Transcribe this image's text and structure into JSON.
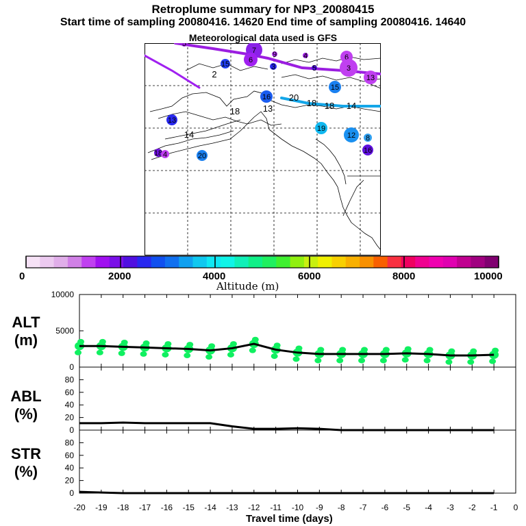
{
  "header": {
    "title": "Retroplume summary for NP3_20080415",
    "subtitle": "Start time of sampling 20080416. 14620     End time of sampling 20080416. 14640",
    "met_note": "Meteorological data used is GFS"
  },
  "map": {
    "point_labels": [
      "5",
      "7",
      "9",
      "4",
      "6",
      "15",
      "6",
      "3",
      "5",
      "3",
      "13",
      "15",
      "16",
      "20",
      "18",
      "18",
      "14",
      "13",
      "19",
      "12",
      "8",
      "16",
      "13",
      "14",
      "18",
      "20",
      "2",
      "18",
      "4"
    ],
    "colors": {
      "trajectory_purple": "#9b1ee0",
      "trajectory_cyan": "#14a6e8",
      "trajectory_violet": "#a020f0"
    }
  },
  "colorbar": {
    "tick_labels": [
      "0",
      "2000",
      "4000",
      "6000",
      "8000",
      "10000"
    ],
    "label": "Altitude (m)",
    "colors": [
      "#f6e2f6",
      "#eccaf0",
      "#e0aee9",
      "#d080e6",
      "#c040f0",
      "#a010f0",
      "#7a10e8",
      "#5010e0",
      "#2828f0",
      "#1050f0",
      "#1070f0",
      "#10a0f0",
      "#10c8f0",
      "#10e8f4",
      "#10f4e8",
      "#10f0b8",
      "#10f088",
      "#20f060",
      "#40f030",
      "#90f010",
      "#c8f010",
      "#f0f000",
      "#f8d000",
      "#f8b000",
      "#f89000",
      "#f86000",
      "#f83040",
      "#f00060",
      "#f00090",
      "#f000b0",
      "#e000b0",
      "#c00090",
      "#a00080",
      "#800070"
    ]
  },
  "chart_data": [
    {
      "type": "line",
      "panel": "ALT",
      "ylabel_line1": "ALT",
      "ylabel_line2": "(m)",
      "ylim": [
        0,
        10000
      ],
      "yticks": [
        "10000",
        "5000",
        "0"
      ],
      "x": [
        -20,
        -19,
        -18,
        -17,
        -16,
        -15,
        -14,
        -13,
        -12,
        -11,
        -10,
        -9,
        -8,
        -7,
        -6,
        -5,
        -4,
        -3,
        -2,
        -1
      ],
      "values": [
        2900,
        2900,
        2800,
        2700,
        2600,
        2500,
        2300,
        2600,
        3200,
        2400,
        2000,
        1800,
        1800,
        1800,
        1800,
        1900,
        1800,
        1600,
        1600,
        1700
      ],
      "scatter_color": "#10f060"
    },
    {
      "type": "line",
      "panel": "ABL",
      "ylabel_line1": "ABL",
      "ylabel_line2": "(%)",
      "ylim": [
        0,
        100
      ],
      "yticks": [
        "80",
        "60",
        "40",
        "20",
        "0"
      ],
      "x": [
        -20,
        -19,
        -18,
        -17,
        -16,
        -15,
        -14,
        -13,
        -12,
        -11,
        -10,
        -9,
        -8,
        -7,
        -6,
        -5,
        -4,
        -3,
        -2,
        -1
      ],
      "values": [
        11,
        11,
        12,
        11,
        11,
        11,
        11,
        6,
        2,
        2,
        3,
        2,
        0,
        0,
        0,
        0,
        0,
        0,
        0,
        0
      ]
    },
    {
      "type": "line",
      "panel": "STR",
      "ylabel_line1": "STR",
      "ylabel_line2": "(%)",
      "ylim": [
        0,
        100
      ],
      "yticks": [
        "80",
        "60",
        "40",
        "20",
        "0"
      ],
      "x": [
        -20,
        -19,
        -18,
        -17,
        -16,
        -15,
        -14,
        -13,
        -12,
        -11,
        -10,
        -9,
        -8,
        -7,
        -6,
        -5,
        -4,
        -3,
        -2,
        -1
      ],
      "values": [
        2,
        1,
        0,
        0,
        0,
        0,
        0,
        0,
        0,
        0,
        0,
        0,
        0,
        0,
        0,
        0,
        0,
        0,
        0,
        0
      ]
    }
  ],
  "xaxis": {
    "tick_labels": [
      "-20",
      "-19",
      "-18",
      "-17",
      "-16",
      "-15",
      "-14",
      "-13",
      "-12",
      "-11",
      "-10",
      "-9",
      "-8",
      "-7",
      "-6",
      "-5",
      "-4",
      "-3",
      "-2",
      "-1",
      "0"
    ],
    "label": "Travel time (days)"
  }
}
